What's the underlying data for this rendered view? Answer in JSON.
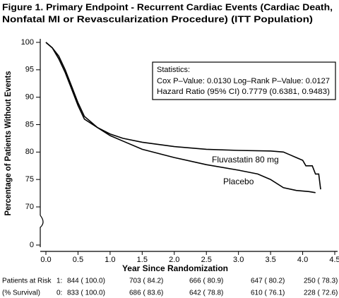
{
  "chart_data": {
    "type": "line",
    "title": [
      "Figure 1.  Primary Endpoint - Recurrent Cardiac Events (Cardiac Death,",
      "Nonfatal MI or Revascularization Procedure) (ITT Population)"
    ],
    "x_label": "Year Since Randomization",
    "y_label": "Percentage of Patients Without Events",
    "xlim": [
      0,
      4.5
    ],
    "ylim": [
      0,
      100
    ],
    "axis_break": [
      0,
      70
    ],
    "xticks": [
      {
        "value": 0,
        "label": "0.0"
      },
      0.5,
      {
        "value": 1,
        "label": "1.0"
      },
      1.5,
      {
        "value": 2,
        "label": "2.0"
      },
      2.5,
      {
        "value": 3,
        "label": "3.0"
      },
      3.5,
      {
        "value": 4,
        "label": "4.0"
      },
      4.5
    ],
    "yticks": [
      0,
      70,
      75,
      80,
      85,
      90,
      95,
      100
    ],
    "series": [
      {
        "name": "Fluvastatin 80 mg",
        "color": "#000000",
        "x": [
          0,
          0.05,
          0.1,
          0.2,
          0.3,
          0.4,
          0.5,
          0.6,
          0.8,
          1.0,
          1.2,
          1.5,
          2.0,
          2.5,
          3.0,
          3.5,
          3.7,
          3.8,
          3.9,
          4.0,
          4.05,
          4.15,
          4.2,
          4.25,
          4.28
        ],
        "values": [
          100,
          99.5,
          99,
          97.5,
          95,
          92,
          89,
          86.5,
          84.5,
          83.3,
          82.5,
          81.8,
          81.0,
          80.5,
          80.3,
          80.2,
          80.0,
          79.5,
          79,
          78.5,
          77.5,
          77.5,
          76,
          76,
          73.2
        ]
      },
      {
        "name": "Placebo",
        "color": "#000000",
        "x": [
          0,
          0.1,
          0.2,
          0.3,
          0.4,
          0.5,
          0.6,
          0.8,
          1.0,
          1.2,
          1.5,
          2.0,
          2.5,
          3.0,
          3.3,
          3.5,
          3.7,
          3.9,
          4.1,
          4.2
        ],
        "values": [
          100,
          99,
          97,
          94.5,
          91.5,
          88.5,
          86,
          84.5,
          83,
          82,
          80.5,
          79,
          77.7,
          76.7,
          76,
          75,
          73.5,
          73,
          72.8,
          72.6
        ]
      }
    ],
    "statistics": {
      "title": "Statistics:",
      "lines": [
        "Cox P–Value: 0.0130  Log–Rank P–Value: 0.0127",
        "Hazard Ratio (95% CI)  0.7779 (0.6381, 0.9483)"
      ]
    },
    "risk_table": [
      {
        "label": "Patients at Risk",
        "group": "1:",
        "cells": [
          "844  ( 100.0)",
          "703 ( 84.2)",
          "666 ( 80.9)",
          "647 ( 80.2)",
          "250 ( 78.3)"
        ]
      },
      {
        "label": "(% Survival)",
        "group": "0:",
        "cells": [
          "833  ( 100.0)",
          "686 ( 83.6)",
          "642 ( 78.8)",
          "610 ( 76.1)",
          "228 ( 72.6)"
        ]
      }
    ]
  }
}
